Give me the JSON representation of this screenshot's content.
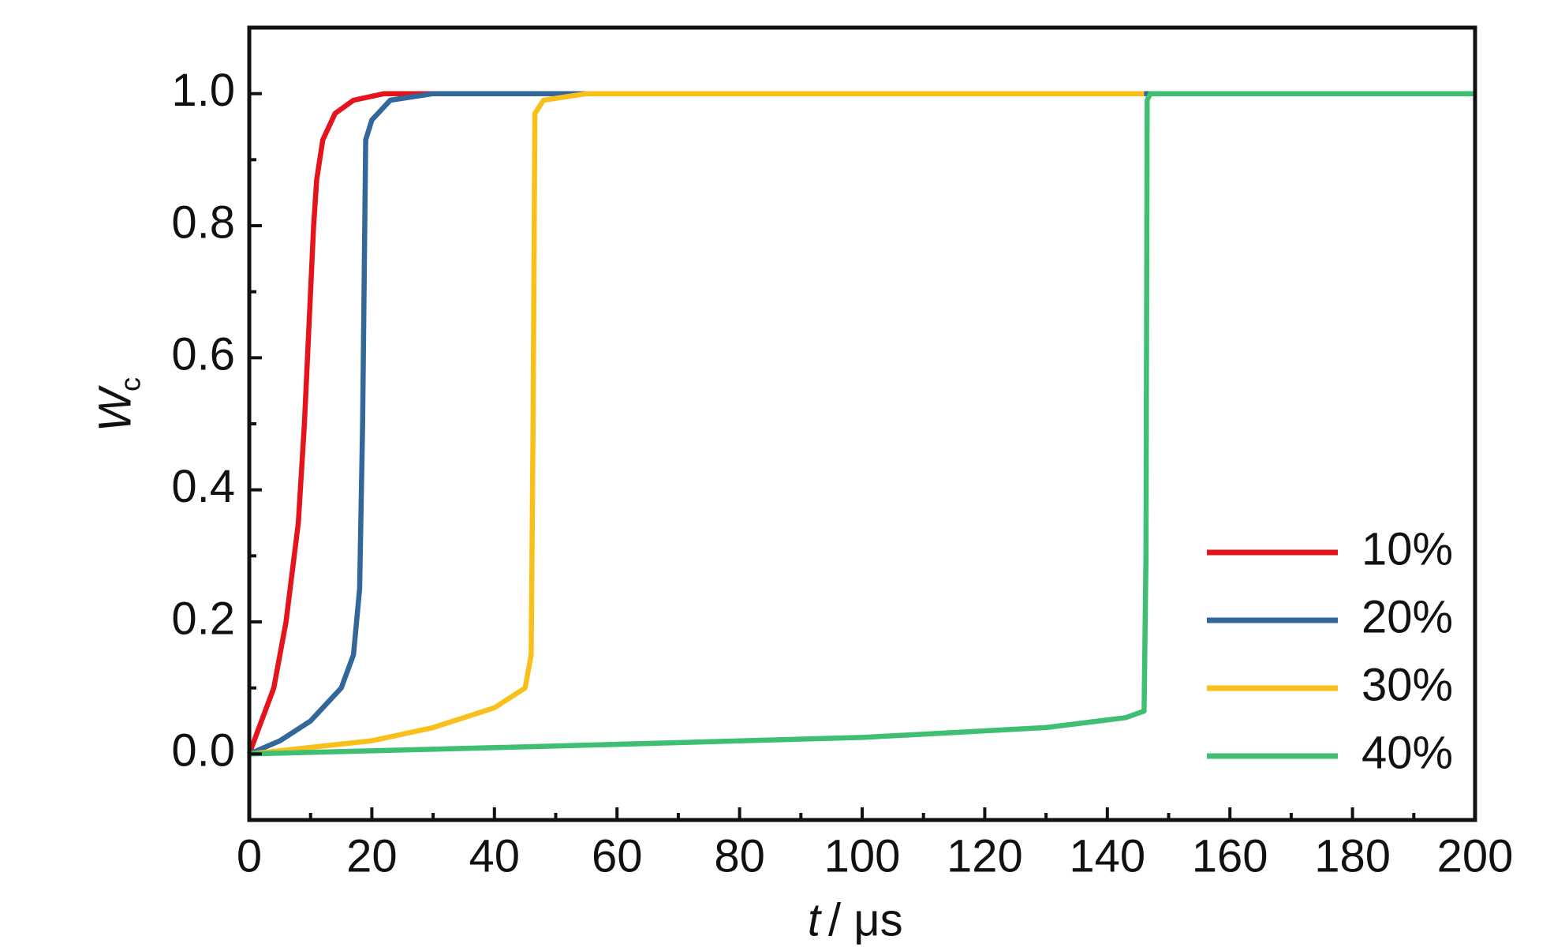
{
  "chart_data": {
    "type": "line",
    "x_label_var": "t",
    "x_label_unit": "/ μs",
    "y_label": "W",
    "y_label_sub": "c",
    "xlim": [
      0,
      200
    ],
    "xticks": [
      0,
      20,
      40,
      60,
      80,
      100,
      120,
      140,
      160,
      180,
      200
    ],
    "ylim": [
      -0.1,
      1.1
    ],
    "yticks": [
      {
        "value": 0,
        "label": "0.0"
      },
      0.2,
      0.4,
      0.6,
      0.8,
      {
        "value": 1,
        "label": "1.0"
      }
    ],
    "legend": "lower right",
    "series": [
      {
        "name": "10%",
        "color": "#e3141b",
        "x": [
          0,
          2,
          4,
          6,
          8,
          9,
          10,
          10.5,
          11,
          12,
          14,
          17,
          22,
          200
        ],
        "values": [
          0,
          0.05,
          0.1,
          0.2,
          0.35,
          0.5,
          0.7,
          0.8,
          0.87,
          0.93,
          0.97,
          0.99,
          1.0,
          1.0
        ]
      },
      {
        "name": "20%",
        "color": "#336699",
        "x": [
          0,
          5,
          10,
          15,
          17,
          18,
          18.5,
          19,
          20,
          23,
          30,
          200
        ],
        "values": [
          0,
          0.02,
          0.05,
          0.1,
          0.15,
          0.25,
          0.5,
          0.93,
          0.96,
          0.99,
          1.0,
          1.0
        ]
      },
      {
        "name": "30%",
        "color": "#f9c01c",
        "x": [
          0,
          10,
          20,
          30,
          40,
          45,
          46,
          46.3,
          46.6,
          48,
          55,
          146
        ],
        "values": [
          0,
          0.01,
          0.02,
          0.04,
          0.07,
          0.1,
          0.15,
          0.5,
          0.97,
          0.99,
          1.0,
          1.0
        ]
      },
      {
        "name": "40%",
        "color": "#3fbf72",
        "x": [
          0,
          50,
          100,
          130,
          143,
          146,
          146.3,
          146.5,
          147,
          200
        ],
        "values": [
          0,
          0.012,
          0.025,
          0.04,
          0.055,
          0.065,
          0.3,
          0.99,
          1.0,
          1.0
        ]
      }
    ]
  }
}
